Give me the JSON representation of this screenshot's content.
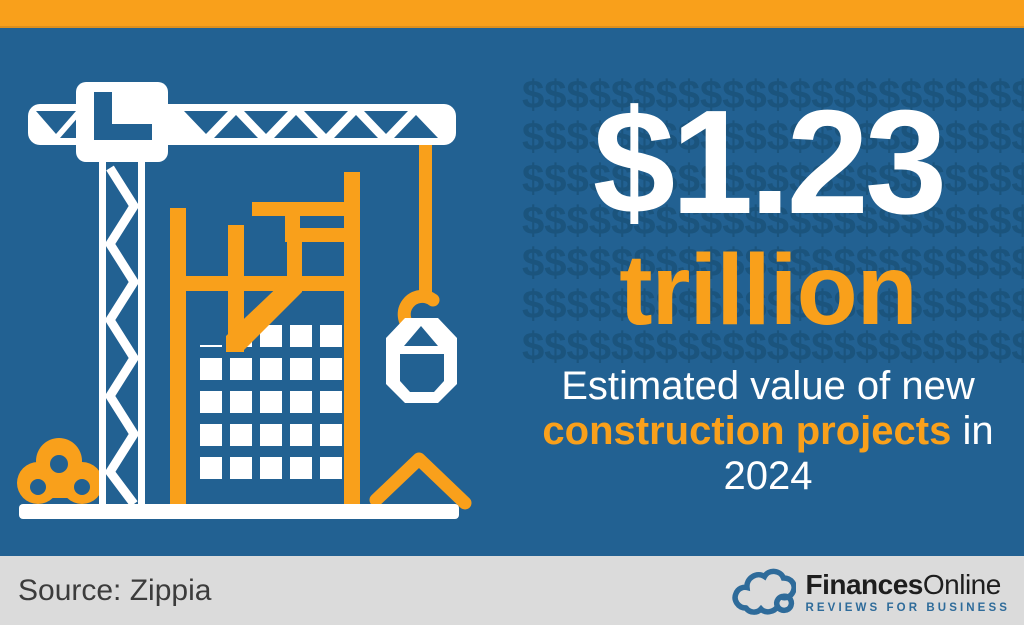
{
  "colors": {
    "orange": "#F9A01B",
    "background_blue": "#226192",
    "pattern_blue": "#1B547D",
    "white": "#FFFFFF",
    "footer_gray": "#DBDBDB",
    "source_text": "#3C3C3C",
    "brand_dark": "#1E1E1E",
    "brand_blue": "#2E6B9A"
  },
  "headline": {
    "amount": "$1.23",
    "unit": "trillion"
  },
  "description": {
    "line1": "Estimated value of new",
    "highlight": "construction projects",
    "suffix": " in",
    "line3": "2024"
  },
  "pattern": {
    "symbol_row": "$$$$$$$$$$$$$$$$$$$$$$$$$$",
    "rows": 7
  },
  "source": {
    "label": "Source: Zippia"
  },
  "brand": {
    "name_bold": "Finances",
    "name_regular": "Online",
    "tagline": "REVIEWS FOR BUSINESS"
  },
  "illustration": {
    "name": "tower-crane-and-building-under-construction"
  }
}
